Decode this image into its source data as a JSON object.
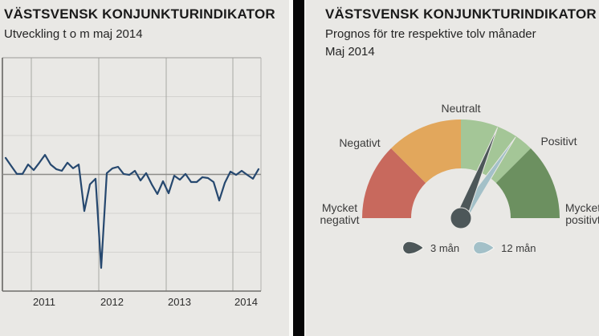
{
  "left_panel": {
    "title": "VÄSTSVENSK KONJUNKTURINDIKATOR",
    "subtitle": "Utveckling t o m maj 2014"
  },
  "right_panel": {
    "title": "VÄSTSVENSK KONJUNKTURINDIKATOR",
    "subtitle_line1": "Prognos för tre respektive tolv månader",
    "subtitle_line2": "Maj 2014"
  },
  "chart_data": [
    {
      "type": "line",
      "title": "VÄSTSVENSK KONJUNKTURINDIKATOR",
      "subtitle": "Utveckling t o m maj 2014",
      "x_tick_labels": [
        "2011",
        "2012",
        "2013",
        "2014"
      ],
      "x_start_month": "2010-08",
      "x_end_month": "2014-05",
      "y_axis_labeled": false,
      "ylim": [
        -75,
        75
      ],
      "y_gridline_step": 25,
      "zero_line": true,
      "grid": true,
      "line_color": "#26486f",
      "monthly_values": [
        10.6,
        5.4,
        0.3,
        0.3,
        6.4,
        2.8,
        7.5,
        12.6,
        6.4,
        3.4,
        2.3,
        7.5,
        3.9,
        6.4,
        -23.5,
        -6.4,
        -2.8,
        -60.1,
        0.8,
        3.9,
        4.9,
        0.3,
        -0.3,
        2.3,
        -3.9,
        0.8,
        -6.4,
        -12.6,
        -4.4,
        -12.1,
        -0.8,
        -3.4,
        0.3,
        -4.9,
        -4.9,
        -1.8,
        -2.3,
        -4.9,
        -16.8,
        -5.4,
        1.8,
        -0.3,
        2.3,
        -0.3,
        -2.8,
        3.4
      ]
    },
    {
      "type": "gauge",
      "title": "VÄSTSVENSK KONJUNKTURINDIKATOR",
      "scale_labels": [
        "Mycket negativt",
        "Negativt",
        "Neutralt",
        "Positivt",
        "Mycket positivt"
      ],
      "segments": [
        {
          "from_label": "Mycket negativt",
          "to_label": "Negativt",
          "color": "#c8695d",
          "start_deg": 180,
          "end_deg": 135
        },
        {
          "from_label": "Negativt",
          "to_label": "Neutralt",
          "color": "#e2a75c",
          "start_deg": 135,
          "end_deg": 90
        },
        {
          "from_label": "Neutralt",
          "to_label": "Positivt",
          "color": "#a4c697",
          "start_deg": 90,
          "end_deg": 45
        },
        {
          "from_label": "Positivt",
          "to_label": "Mycket positivt",
          "color": "#6c9060",
          "start_deg": 45,
          "end_deg": 0
        }
      ],
      "needles": [
        {
          "name": "3 mån",
          "color": "#4d5759",
          "angle_deg": 68
        },
        {
          "name": "12 mån",
          "color": "#a3c0c8",
          "angle_deg": 56
        }
      ],
      "legend": [
        {
          "label": "3 mån",
          "color": "#4d5759"
        },
        {
          "label": "12 mån",
          "color": "#a3c0c8"
        }
      ]
    }
  ],
  "colors": {
    "background": "#e9e8e5",
    "divider": "#060606",
    "title_text": "#1a1a1a"
  }
}
